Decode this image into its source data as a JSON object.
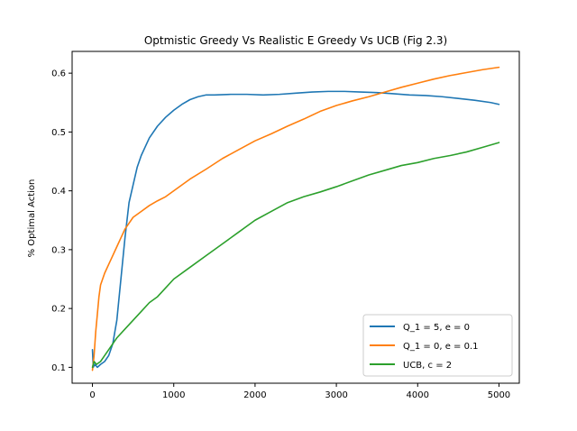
{
  "chart_data": {
    "type": "line",
    "title": "Optmistic Greedy Vs Realistic E Greedy Vs UCB (Fig 2.3)",
    "xlabel": "",
    "ylabel": "% Optimal Action",
    "xlim": [
      -250,
      5250
    ],
    "ylim": [
      0.073,
      0.637
    ],
    "xticks": [
      0,
      1000,
      2000,
      3000,
      4000,
      5000
    ],
    "xtick_labels": [
      "0",
      "1000",
      "2000",
      "3000",
      "4000",
      "5000"
    ],
    "yticks": [
      0.1,
      0.2,
      0.3,
      0.4,
      0.5,
      0.6
    ],
    "ytick_labels": [
      "0.1",
      "0.2",
      "0.3",
      "0.4",
      "0.5",
      "0.6"
    ],
    "grid": false,
    "legend_position": "bottom-right",
    "series": [
      {
        "name": "Q_1 = 5, e = 0",
        "color": "#1f77b4",
        "points": [
          [
            0,
            0.13
          ],
          [
            10,
            0.1
          ],
          [
            30,
            0.105
          ],
          [
            60,
            0.1
          ],
          [
            100,
            0.105
          ],
          [
            150,
            0.11
          ],
          [
            200,
            0.12
          ],
          [
            250,
            0.14
          ],
          [
            300,
            0.18
          ],
          [
            350,
            0.25
          ],
          [
            400,
            0.32
          ],
          [
            450,
            0.38
          ],
          [
            500,
            0.41
          ],
          [
            550,
            0.44
          ],
          [
            600,
            0.46
          ],
          [
            650,
            0.475
          ],
          [
            700,
            0.49
          ],
          [
            800,
            0.51
          ],
          [
            900,
            0.525
          ],
          [
            1000,
            0.537
          ],
          [
            1100,
            0.547
          ],
          [
            1200,
            0.555
          ],
          [
            1300,
            0.56
          ],
          [
            1400,
            0.563
          ],
          [
            1500,
            0.563
          ],
          [
            1700,
            0.564
          ],
          [
            1900,
            0.564
          ],
          [
            2100,
            0.563
          ],
          [
            2300,
            0.564
          ],
          [
            2500,
            0.566
          ],
          [
            2700,
            0.568
          ],
          [
            2900,
            0.569
          ],
          [
            3100,
            0.569
          ],
          [
            3300,
            0.568
          ],
          [
            3500,
            0.567
          ],
          [
            3700,
            0.565
          ],
          [
            3900,
            0.563
          ],
          [
            4100,
            0.562
          ],
          [
            4300,
            0.56
          ],
          [
            4500,
            0.557
          ],
          [
            4700,
            0.554
          ],
          [
            4900,
            0.55
          ],
          [
            5000,
            0.547
          ]
        ]
      },
      {
        "name": "Q_1 = 0, e = 0.1",
        "color": "#ff7f0e",
        "points": [
          [
            0,
            0.095
          ],
          [
            20,
            0.12
          ],
          [
            40,
            0.16
          ],
          [
            60,
            0.19
          ],
          [
            80,
            0.22
          ],
          [
            100,
            0.24
          ],
          [
            150,
            0.26
          ],
          [
            200,
            0.275
          ],
          [
            250,
            0.29
          ],
          [
            300,
            0.305
          ],
          [
            350,
            0.32
          ],
          [
            400,
            0.335
          ],
          [
            450,
            0.345
          ],
          [
            500,
            0.355
          ],
          [
            600,
            0.365
          ],
          [
            700,
            0.375
          ],
          [
            800,
            0.383
          ],
          [
            900,
            0.39
          ],
          [
            1000,
            0.4
          ],
          [
            1200,
            0.42
          ],
          [
            1400,
            0.437
          ],
          [
            1600,
            0.455
          ],
          [
            1800,
            0.47
          ],
          [
            2000,
            0.485
          ],
          [
            2200,
            0.497
          ],
          [
            2400,
            0.51
          ],
          [
            2600,
            0.522
          ],
          [
            2800,
            0.535
          ],
          [
            3000,
            0.545
          ],
          [
            3200,
            0.553
          ],
          [
            3400,
            0.56
          ],
          [
            3600,
            0.568
          ],
          [
            3800,
            0.576
          ],
          [
            4000,
            0.583
          ],
          [
            4200,
            0.59
          ],
          [
            4400,
            0.596
          ],
          [
            4600,
            0.601
          ],
          [
            4800,
            0.606
          ],
          [
            5000,
            0.61
          ]
        ]
      },
      {
        "name": "UCB, c = 2",
        "color": "#2ca02c",
        "points": [
          [
            0,
            0.1
          ],
          [
            20,
            0.11
          ],
          [
            50,
            0.105
          ],
          [
            100,
            0.11
          ],
          [
            150,
            0.12
          ],
          [
            200,
            0.13
          ],
          [
            250,
            0.14
          ],
          [
            300,
            0.15
          ],
          [
            400,
            0.165
          ],
          [
            500,
            0.18
          ],
          [
            600,
            0.195
          ],
          [
            700,
            0.21
          ],
          [
            800,
            0.22
          ],
          [
            900,
            0.235
          ],
          [
            1000,
            0.25
          ],
          [
            1200,
            0.27
          ],
          [
            1400,
            0.29
          ],
          [
            1600,
            0.31
          ],
          [
            1800,
            0.33
          ],
          [
            2000,
            0.35
          ],
          [
            2200,
            0.365
          ],
          [
            2400,
            0.38
          ],
          [
            2600,
            0.39
          ],
          [
            2800,
            0.398
          ],
          [
            3000,
            0.407
          ],
          [
            3200,
            0.417
          ],
          [
            3400,
            0.427
          ],
          [
            3600,
            0.435
          ],
          [
            3800,
            0.443
          ],
          [
            4000,
            0.448
          ],
          [
            4200,
            0.455
          ],
          [
            4400,
            0.46
          ],
          [
            4600,
            0.466
          ],
          [
            4800,
            0.474
          ],
          [
            5000,
            0.482
          ]
        ]
      }
    ]
  }
}
